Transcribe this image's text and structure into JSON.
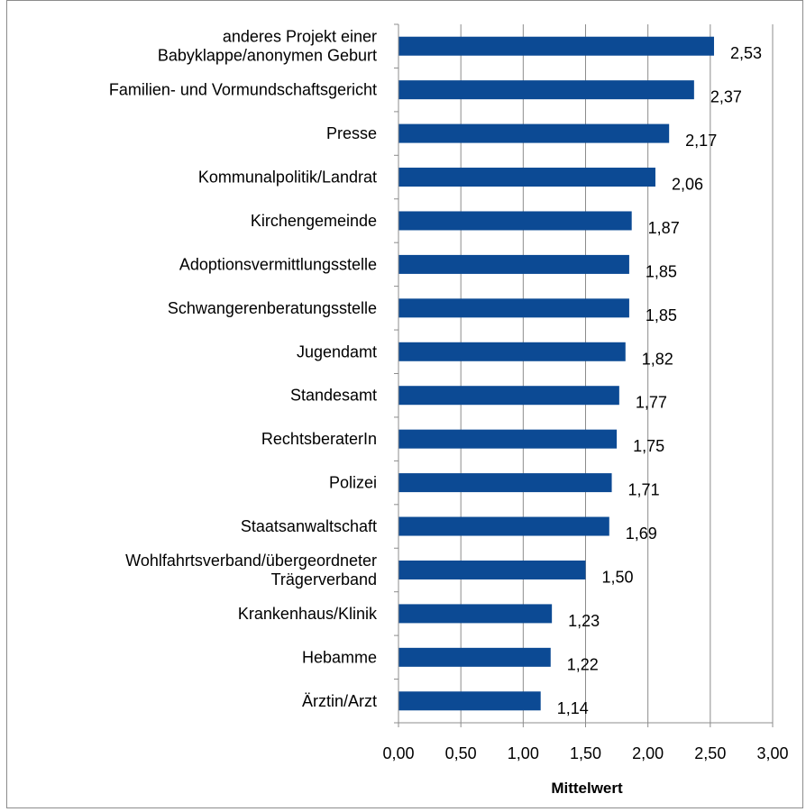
{
  "chart_data": {
    "type": "bar",
    "orientation": "horizontal",
    "categories": [
      [
        "anderes Projekt einer",
        "Babyklappe/anonymen Geburt"
      ],
      [
        "Familien- und Vormundschaftsgericht"
      ],
      [
        "Presse"
      ],
      [
        "Kommunalpolitik/Landrat"
      ],
      [
        "Kirchengemeinde"
      ],
      [
        "Adoptionsvermittlungsstelle"
      ],
      [
        "Schwangerenberatungsstelle"
      ],
      [
        "Jugendamt"
      ],
      [
        "Standesamt"
      ],
      [
        "RechtsberaterIn"
      ],
      [
        "Polizei"
      ],
      [
        "Staatsanwaltschaft"
      ],
      [
        "Wohlfahrtsverband/übergeordneter",
        "Trägerverband"
      ],
      [
        "Krankenhaus/Klinik"
      ],
      [
        "Hebamme"
      ],
      [
        "Ärztin/Arzt"
      ]
    ],
    "values": [
      2.53,
      2.37,
      2.17,
      2.06,
      1.87,
      1.85,
      1.85,
      1.82,
      1.77,
      1.75,
      1.71,
      1.69,
      1.5,
      1.23,
      1.22,
      1.14
    ],
    "value_labels": [
      "2,53",
      "2,37",
      "2,17",
      "2,06",
      "1,87",
      "1,85",
      "1,85",
      "1,82",
      "1,77",
      "1,75",
      "1,71",
      "1,69",
      "1,50",
      "1,23",
      "1,22",
      "1,14"
    ],
    "xlabel": "Mittelwert",
    "ylabel": "",
    "title": "",
    "xlim": [
      0,
      3
    ],
    "ticks": [
      0,
      0.5,
      1,
      1.5,
      2,
      2.5,
      3
    ],
    "tick_labels": [
      "0,00",
      "0,50",
      "1,00",
      "1,50",
      "2,00",
      "2,50",
      "3,00"
    ],
    "grid": "vertical",
    "legend": "none",
    "bar_color": "#0c4a94",
    "grid_color": "#8c8c8c",
    "axis_color": "#8c8c8c"
  }
}
